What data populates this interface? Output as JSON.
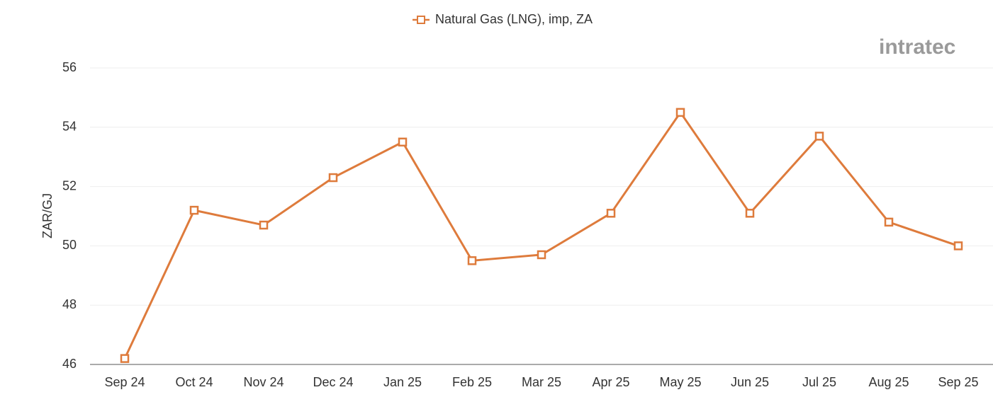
{
  "chart_data": {
    "type": "line",
    "categories": [
      "Sep 24",
      "Oct 24",
      "Nov 24",
      "Dec 24",
      "Jan 25",
      "Feb 25",
      "Mar 25",
      "Apr 25",
      "May 25",
      "Jun 25",
      "Jul 25",
      "Aug 25",
      "Sep 25"
    ],
    "series": [
      {
        "name": "Natural Gas (LNG), imp, ZA",
        "color": "#de7b3c",
        "values": [
          46.2,
          51.2,
          50.7,
          52.3,
          53.5,
          49.5,
          49.7,
          51.1,
          54.5,
          51.1,
          53.7,
          50.8,
          50.0
        ]
      }
    ],
    "y_label": "ZAR/GJ",
    "ylim": [
      46,
      56
    ],
    "yticks": [
      46,
      48,
      50,
      52,
      54,
      56
    ],
    "grid": true,
    "legend": "top",
    "logo": "intratec"
  }
}
